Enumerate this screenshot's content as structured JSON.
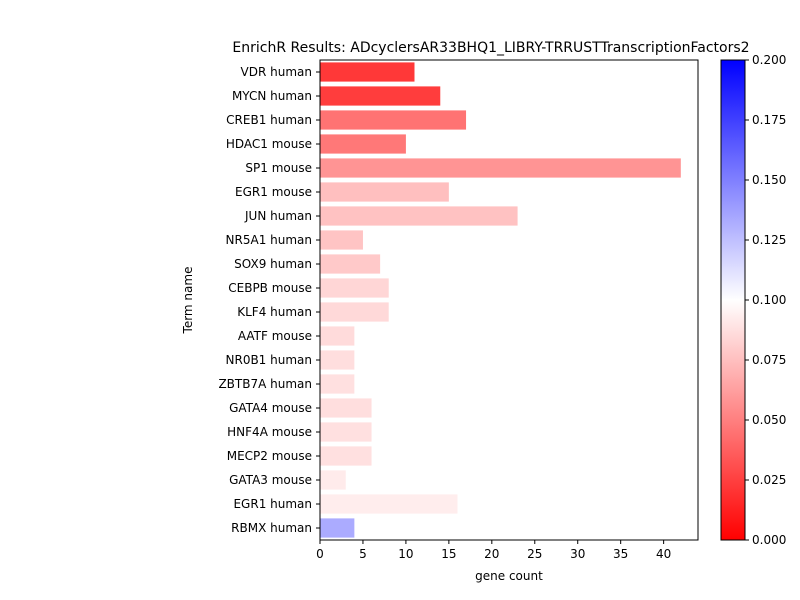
{
  "chart_data": {
    "type": "bar",
    "orientation": "horizontal",
    "title": "EnrichR Results: ADcyclersAR33BHQ1_LIBRY-TRRUSTTranscriptionFactors2",
    "xlabel": "gene count",
    "ylabel": "Term name",
    "xlim": [
      0,
      44
    ],
    "xticks": [
      0,
      5,
      10,
      15,
      20,
      25,
      30,
      35,
      40
    ],
    "grid": false,
    "categories": [
      "VDR human",
      "MYCN human",
      "CREB1 human",
      "HDAC1 mouse",
      "SP1 mouse",
      "EGR1 mouse",
      "JUN human",
      "NR5A1 human",
      "SOX9 human",
      "CEBPB mouse",
      "KLF4 human",
      "AATF mouse",
      "NR0B1 human",
      "ZBTB7A human",
      "GATA4 mouse",
      "HNF4A mouse",
      "MECP2 mouse",
      "GATA3 mouse",
      "EGR1 human",
      "RBMX human"
    ],
    "values": [
      11,
      14,
      17,
      10,
      42,
      15,
      23,
      5,
      7,
      8,
      8,
      4,
      4,
      4,
      6,
      6,
      6,
      3,
      16,
      4
    ],
    "color_values": [
      0.022,
      0.024,
      0.045,
      0.047,
      0.058,
      0.075,
      0.076,
      0.077,
      0.079,
      0.084,
      0.085,
      0.086,
      0.087,
      0.088,
      0.087,
      0.088,
      0.088,
      0.092,
      0.093,
      0.133
    ],
    "colorbar": {
      "cmap": "bwr",
      "range": [
        0,
        0.2
      ],
      "ticks": [
        "0.000",
        "0.025",
        "0.050",
        "0.075",
        "0.100",
        "0.125",
        "0.150",
        "0.175",
        "0.200"
      ],
      "colors": {
        "low": "#ff0000",
        "mid": "#ffffff",
        "high": "#0000ff"
      }
    }
  }
}
